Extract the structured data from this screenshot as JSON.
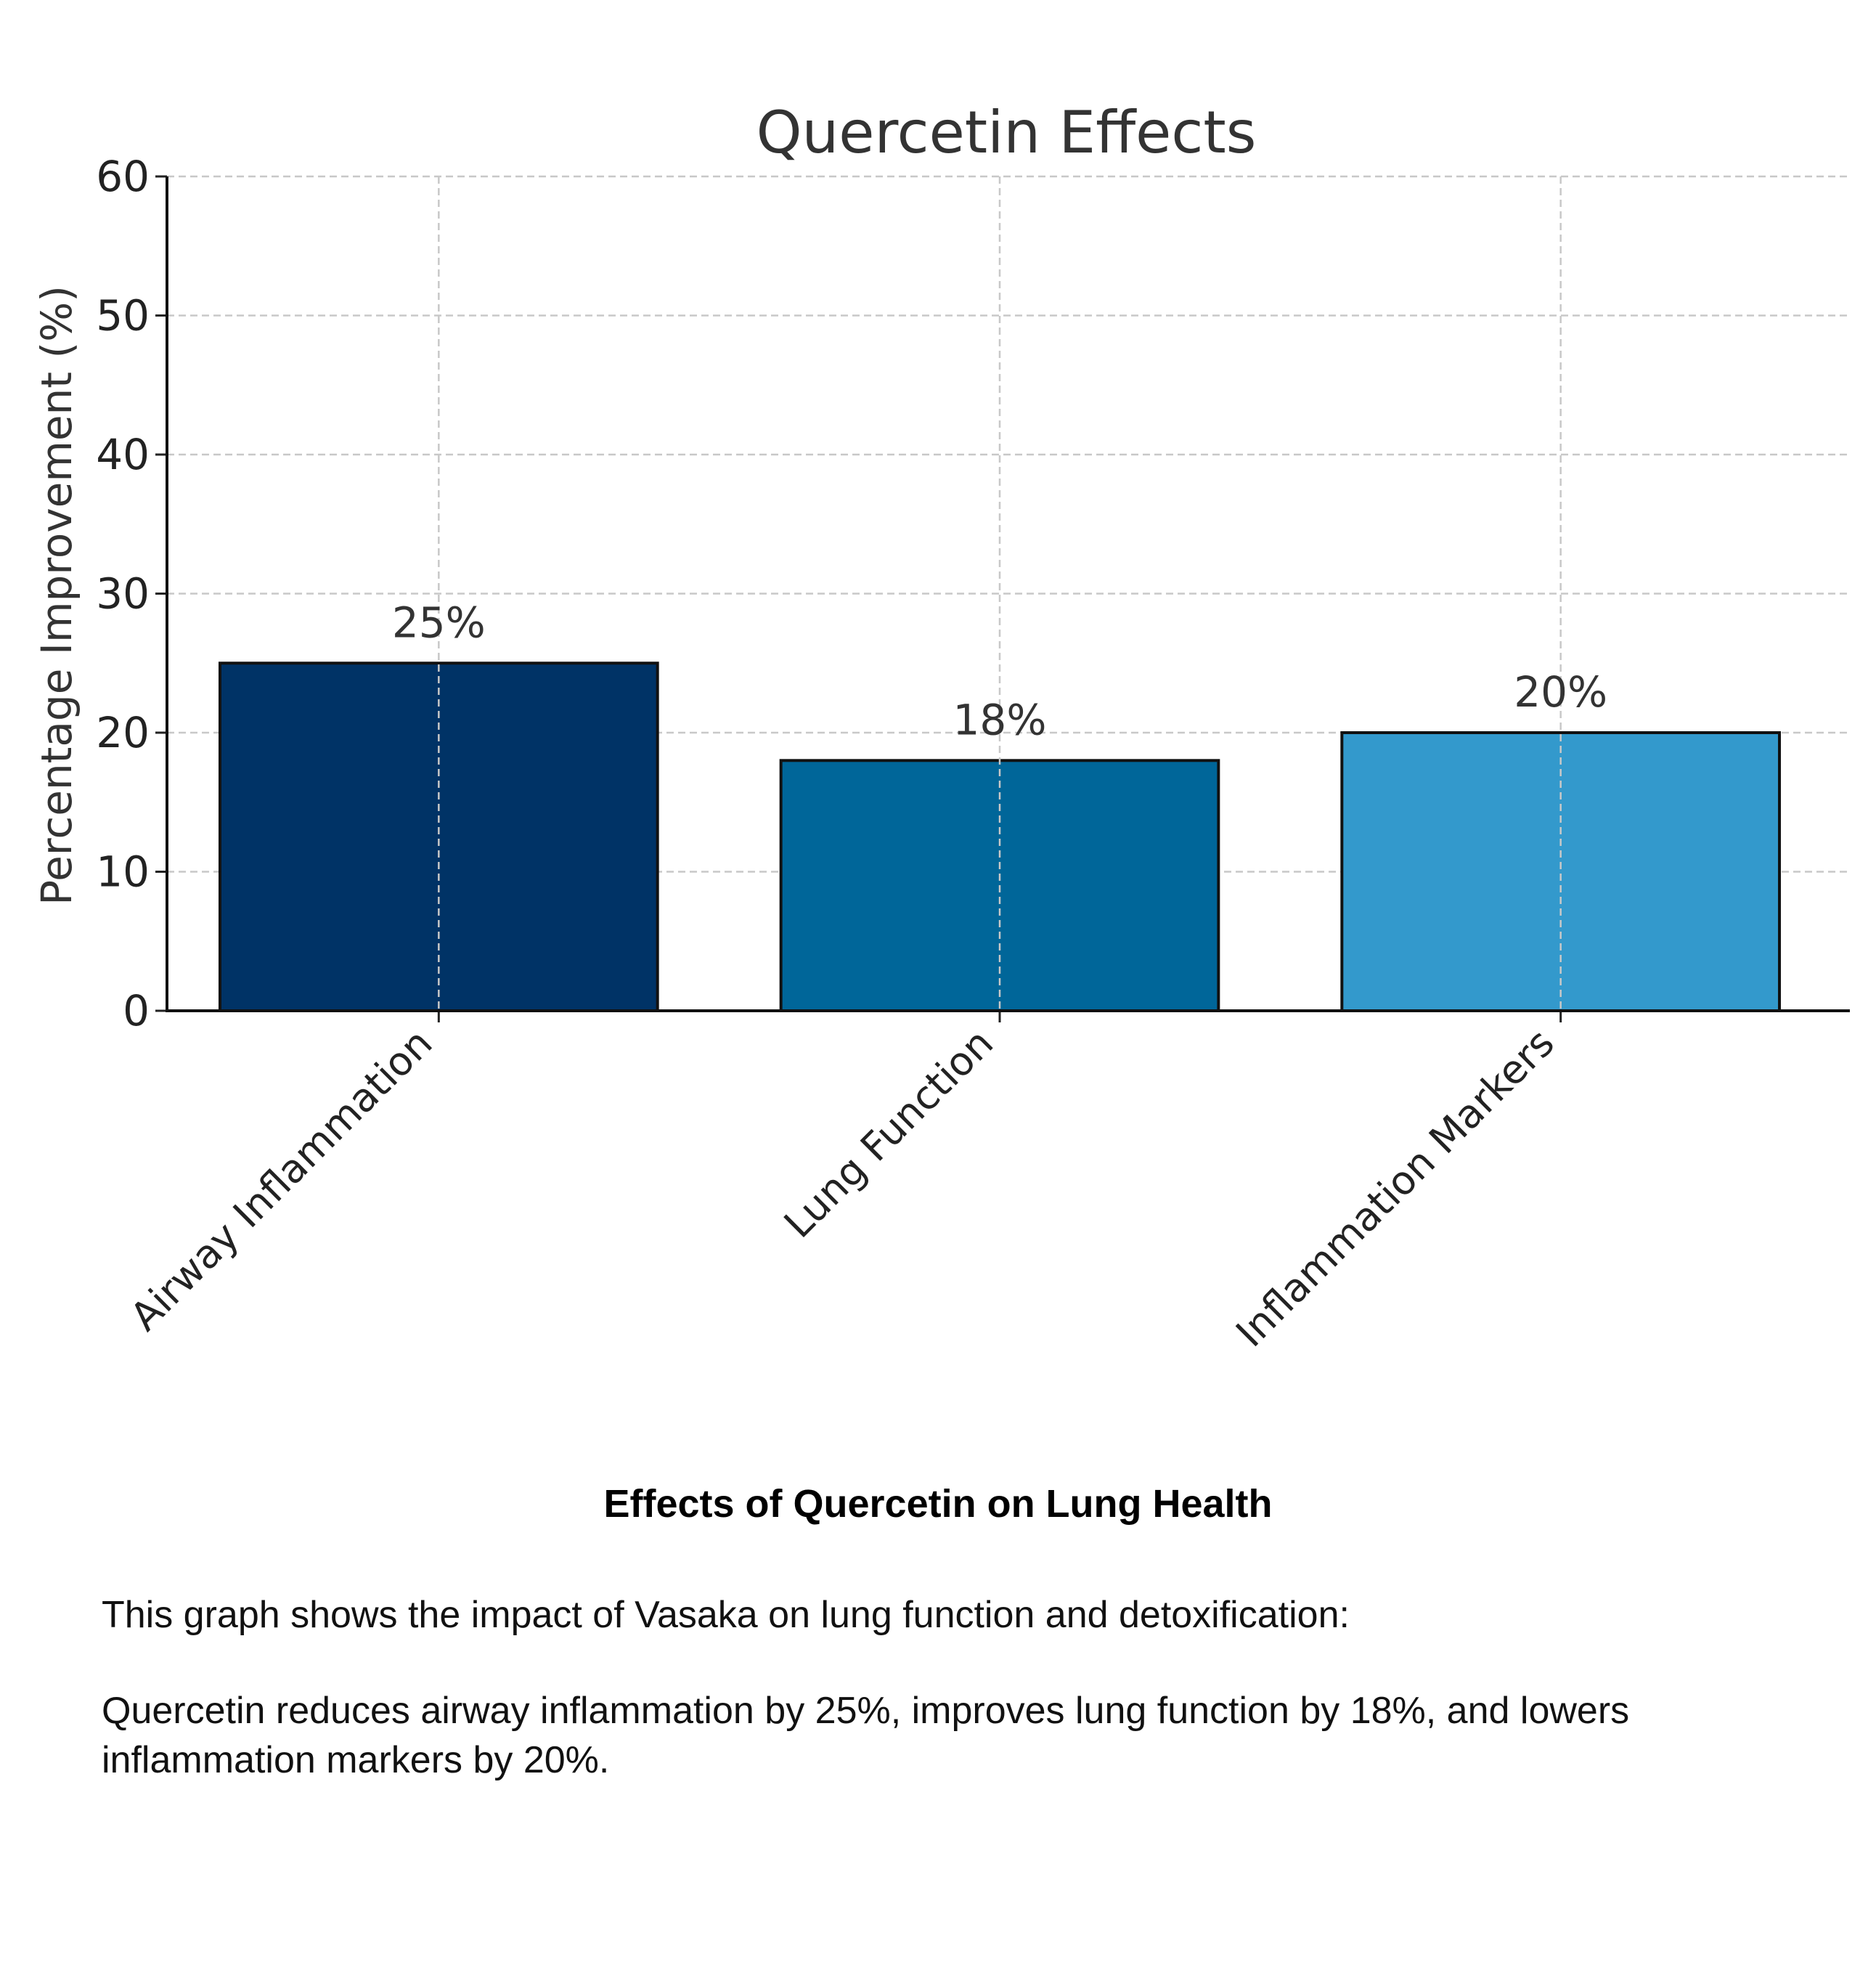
{
  "chart_data": {
    "type": "bar",
    "title": "Quercetin Effects",
    "xlabel": "",
    "ylabel": "Percentage Improvement (%)",
    "categories": [
      "Airway Inflammation",
      "Lung Function",
      "Inflammation Markers"
    ],
    "values": [
      25,
      18,
      20
    ],
    "value_labels": [
      "25%",
      "18%",
      "20%"
    ],
    "bar_colors": [
      "#003366",
      "#006699",
      "#3399cc"
    ],
    "ylim": [
      0,
      60
    ],
    "yticks": [
      0,
      10,
      20,
      30,
      40,
      50,
      60
    ],
    "grid": true
  },
  "caption": {
    "title": "Effects of Quercetin on Lung Health",
    "line1": "This graph shows the impact of Vasaka on lung function and detoxification:",
    "line2": "Quercetin reduces airway inflammation by 25%, improves lung function by 18%, and lowers inflammation markers by 20%."
  }
}
